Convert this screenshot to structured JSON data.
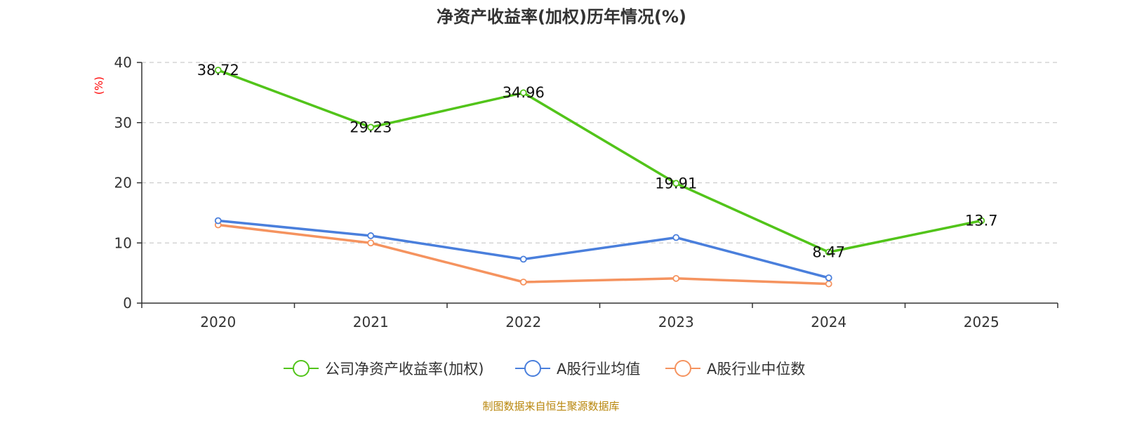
{
  "chart_data": {
    "type": "line",
    "title": "净资产收益率(加权)历年情况(%)",
    "ylabel": "(%)",
    "xlabel": "",
    "categories": [
      "2020",
      "2021",
      "2022",
      "2023",
      "2024",
      "2025"
    ],
    "ylim": [
      0,
      40
    ],
    "yticks": [
      0,
      10,
      20,
      30,
      40
    ],
    "grid": true,
    "legend_position": "bottom-center",
    "series": [
      {
        "name": "公司净资产收益率(加权)",
        "color": "#52c41a",
        "values": [
          38.72,
          29.23,
          34.96,
          19.91,
          8.47,
          13.7
        ],
        "labels": [
          "38.72",
          "29.23",
          "34.96",
          "19.91",
          "8.47",
          "13.7"
        ]
      },
      {
        "name": "A股行业均值",
        "color": "#4a7fdc",
        "values": [
          13.7,
          11.2,
          7.3,
          10.9,
          4.2,
          null
        ]
      },
      {
        "name": "A股行业中位数",
        "color": "#f5935f",
        "values": [
          13.0,
          10.0,
          3.5,
          4.1,
          3.2,
          null
        ]
      }
    ],
    "source": "制图数据来自恒生聚源数据库",
    "colors": {
      "axis": "#333333",
      "grid": "#cccccc",
      "unit": "#ff0000",
      "source": "#b8860b"
    }
  }
}
